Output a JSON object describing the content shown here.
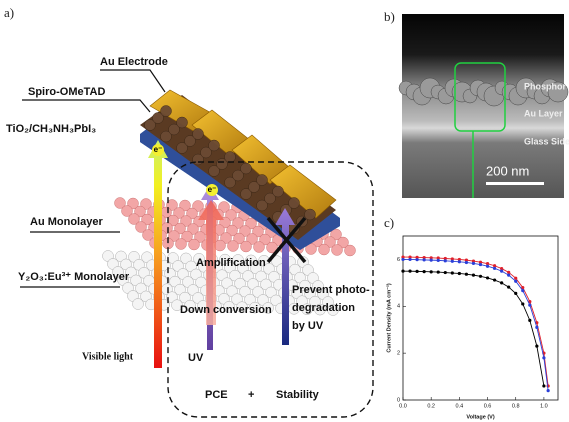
{
  "panel_a": {
    "label": "a)",
    "au_electrode": "Au Electrode",
    "spiro": "Spiro-OMeTAD",
    "perovskite": "TiO₂/CH₃NH₃PbI₃",
    "electron_1": "e⁻",
    "electron_2": "e⁻",
    "au_monolayer": "Au Monolayer",
    "phosphor_monolayer": "Y₂O₃:Eu³⁺ Monolayer",
    "amplification": "Amplification",
    "down_conversion": "Down conversion",
    "prevent": [
      "Prevent photo-",
      "degradation",
      "by UV"
    ],
    "visible_light": "Visible light",
    "uv": "UV",
    "pce": "PCE",
    "plus": "+",
    "stability": "Stability"
  },
  "panel_b": {
    "label": "b)",
    "phosphor": "Phosphor",
    "au_layer": "Au Layer",
    "glass_side": "Glass Side",
    "scale": "200 nm"
  },
  "panel_c": {
    "label": "c)"
  },
  "chart_data": {
    "type": "line",
    "xlabel": "Voltage (V)",
    "ylabel": "Current Density (mA cm⁻²)",
    "x": [
      0,
      0.05,
      0.1,
      0.15,
      0.2,
      0.25,
      0.3,
      0.35,
      0.4,
      0.45,
      0.5,
      0.55,
      0.6,
      0.65,
      0.7,
      0.75,
      0.8,
      0.85,
      0.9,
      0.95,
      1.0,
      1.03
    ],
    "series": [
      {
        "color": "#e0202a",
        "values": [
          6.1,
          6.1,
          6.09,
          6.08,
          6.07,
          6.06,
          6.04,
          6.02,
          6.0,
          5.97,
          5.93,
          5.88,
          5.82,
          5.73,
          5.61,
          5.45,
          5.2,
          4.8,
          4.2,
          3.3,
          2.0,
          0.6
        ]
      },
      {
        "color": "#2a3fd8",
        "values": [
          6.0,
          6.0,
          5.99,
          5.98,
          5.97,
          5.96,
          5.94,
          5.92,
          5.9,
          5.87,
          5.83,
          5.78,
          5.71,
          5.62,
          5.5,
          5.33,
          5.07,
          4.67,
          4.05,
          3.1,
          1.8,
          0.4
        ]
      },
      {
        "color": "#000000",
        "values": [
          5.5,
          5.5,
          5.49,
          5.48,
          5.47,
          5.46,
          5.44,
          5.42,
          5.4,
          5.37,
          5.33,
          5.28,
          5.21,
          5.12,
          5.0,
          4.82,
          4.55,
          4.1,
          3.4,
          2.3,
          0.6,
          null
        ]
      }
    ],
    "xlim": [
      0,
      1.1
    ],
    "ylim": [
      0,
      7
    ],
    "xticks": [
      {
        "value": 0,
        "label": "0.0"
      },
      {
        "value": 0.2,
        "label": "0.2"
      },
      {
        "value": 0.4,
        "label": "0.4"
      },
      {
        "value": 0.6,
        "label": "0.6"
      },
      {
        "value": 0.8,
        "label": "0.8"
      },
      {
        "value": 1.0,
        "label": "1.0"
      }
    ],
    "yticks": [
      0,
      2,
      4,
      6
    ]
  }
}
